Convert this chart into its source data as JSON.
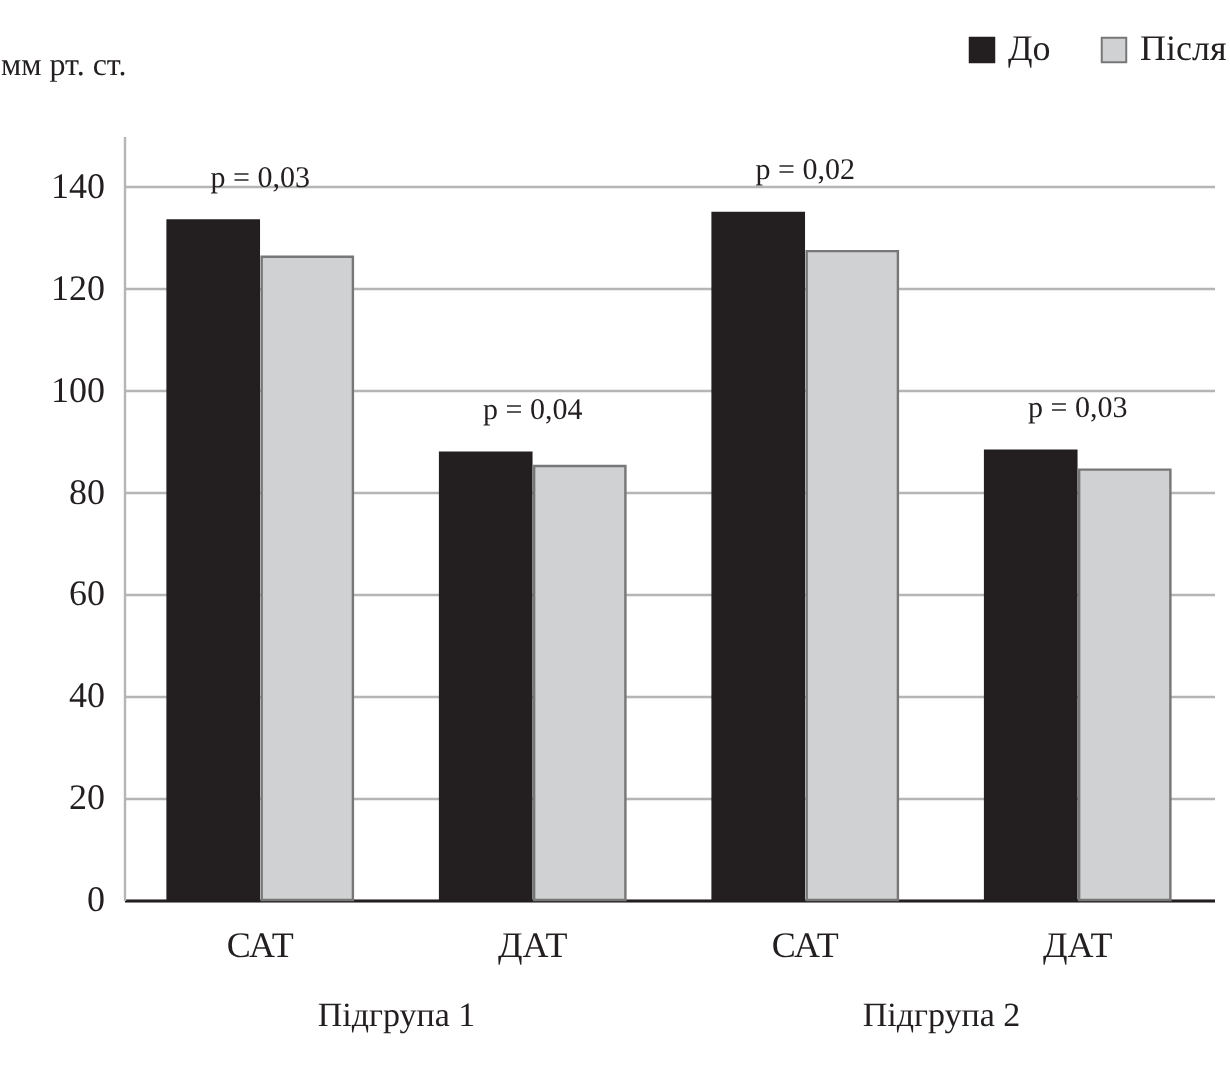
{
  "chart_data": {
    "type": "bar",
    "ylabel": "мм рт. ст.",
    "categories": [
      "САТ",
      "ДАТ",
      "САТ",
      "ДАТ"
    ],
    "series": [
      {
        "name": "До",
        "color": "#231f20",
        "values": [
          133.4,
          87.8,
          134.9,
          88.2
        ]
      },
      {
        "name": "Після",
        "color": "#d0d1d3",
        "values": [
          126.3,
          85.2,
          127.4,
          84.5
        ]
      }
    ],
    "ylim": [
      0,
      150
    ],
    "yticks": [
      0,
      20,
      40,
      60,
      80,
      100,
      120,
      140
    ],
    "grid": "y",
    "legend": "top right",
    "annotations": [
      "p = 0,03",
      "p = 0,04",
      "p = 0,02",
      "p = 0,03",
      "Підгрупа 1",
      "Підгрупа 2"
    ]
  }
}
